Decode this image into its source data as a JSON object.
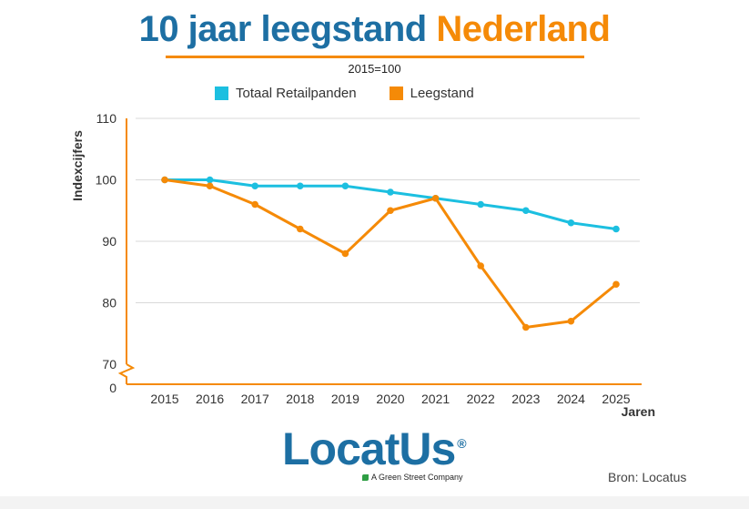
{
  "title_part1": "10 jaar leegstand",
  "title_part2": "Nederland",
  "subtitle": "2015=100",
  "colors": {
    "blue": "#1cbfe0",
    "orange": "#f58a07",
    "title_blue": "#1d6fa3",
    "grid": "#d9d9d9"
  },
  "chart_data": {
    "type": "line",
    "x": [
      "2015",
      "2016",
      "2017",
      "2018",
      "2019",
      "2020",
      "2021",
      "2022",
      "2023",
      "2024",
      "2025"
    ],
    "series": [
      {
        "name": "Totaal Retailpanden",
        "color": "#1cbfe0",
        "values": [
          100,
          100,
          99,
          99,
          99,
          98,
          97,
          96,
          95,
          93,
          92
        ]
      },
      {
        "name": "Leegstand",
        "color": "#f58a07",
        "values": [
          100,
          99,
          96,
          92,
          88,
          95,
          97,
          86,
          76,
          77,
          83
        ]
      }
    ],
    "ylabel": "Indexcijfers",
    "xlabel": "Jaren",
    "y_ticks": [
      "110",
      "100",
      "90",
      "80",
      "70"
    ],
    "y_zero_label": "0",
    "ylim": [
      70,
      110
    ],
    "axis_break": true,
    "grid": true,
    "legend_position": "top-center"
  },
  "logo_text": "LocatUs",
  "logo_reg": "®",
  "tagline": "A Green Street Company",
  "source": "Bron: Locatus"
}
